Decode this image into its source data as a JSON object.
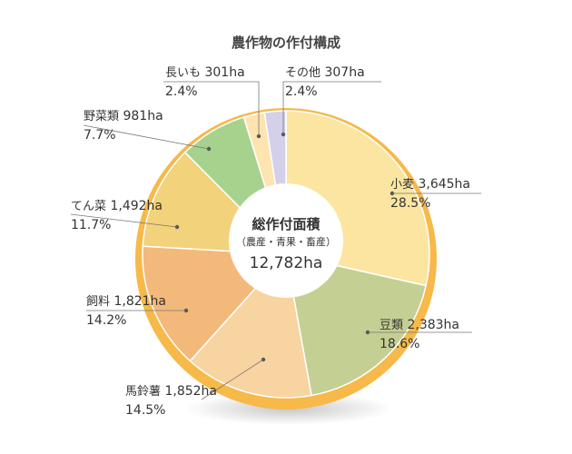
{
  "chart_data": {
    "type": "pie",
    "title": "農作物の作付構成",
    "center": {
      "title": "総作付面積",
      "subtitle": "（農産・青果・畜産）",
      "total": "12,782ha"
    },
    "slices": [
      {
        "name": "小麦",
        "value": 3645,
        "value_label": "3,645ha",
        "percent": "28.5%",
        "color": "#fbe5a0"
      },
      {
        "name": "豆類",
        "value": 2383,
        "value_label": "2,383ha",
        "percent": "18.6%",
        "color": "#c4cf94"
      },
      {
        "name": "馬鈴薯",
        "value": 1852,
        "value_label": "1,852ha",
        "percent": "14.5%",
        "color": "#f8d4a0"
      },
      {
        "name": "飼料",
        "value": 1821,
        "value_label": "1,821ha",
        "percent": "14.2%",
        "color": "#f3b97a"
      },
      {
        "name": "てん菜",
        "value": 1492,
        "value_label": "1,492ha",
        "percent": "11.7%",
        "color": "#f2d27a"
      },
      {
        "name": "野菜類",
        "value": 981,
        "value_label": "981ha",
        "percent": "7.7%",
        "color": "#a6d28e"
      },
      {
        "name": "長いも",
        "value": 301,
        "value_label": "301ha",
        "percent": "2.4%",
        "color": "#fde4b0"
      },
      {
        "name": "その他",
        "value": 307,
        "value_label": "307ha",
        "percent": "2.4%",
        "color": "#d4d0ea"
      }
    ],
    "ring_color": "#f6b94a",
    "legend": "none"
  }
}
